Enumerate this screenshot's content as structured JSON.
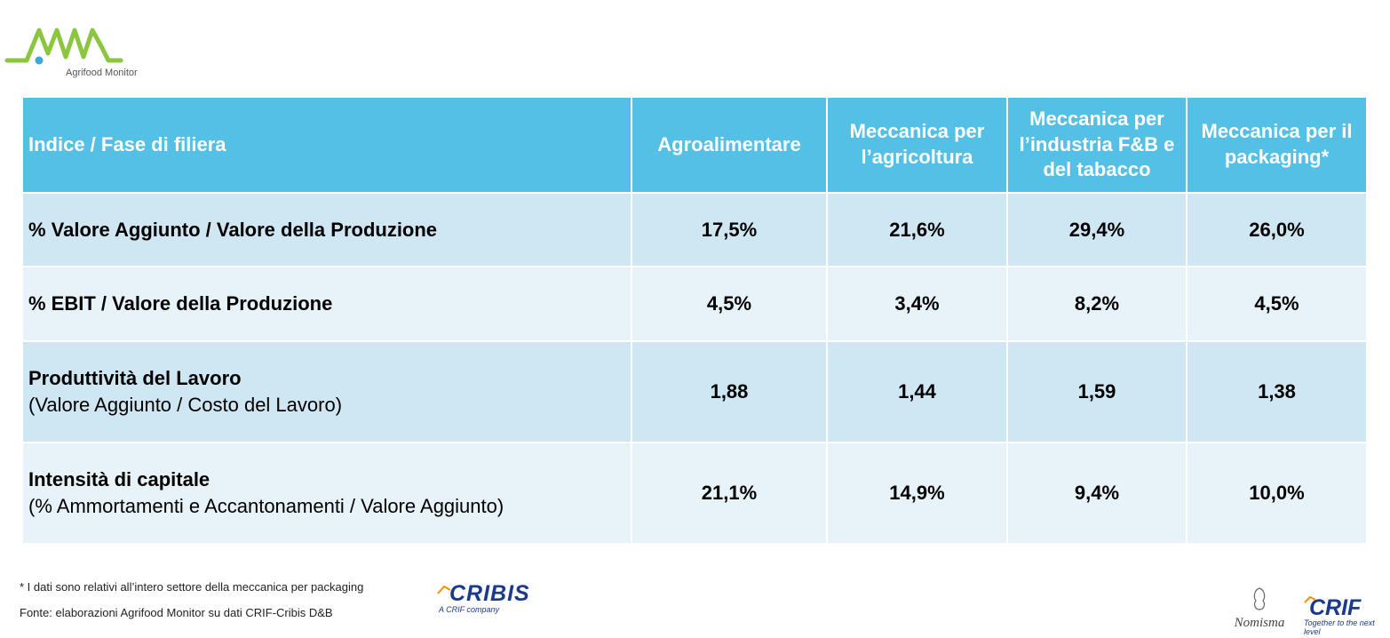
{
  "brand": {
    "name": "Agrifood Monitor",
    "logo_icon": "pulse-wave-logo",
    "colors": {
      "logo_green": "#8cc63f",
      "logo_blue": "#3fa9d6",
      "header_blue": "#55c0e6",
      "row_dark": "#cfe6f3",
      "row_light": "#e7f2f9"
    }
  },
  "table": {
    "headers": [
      "Indice / Fase di filiera",
      "Agroalimentare",
      "Meccanica per l’agricoltura",
      "Meccanica per l’industria F&B e del tabacco",
      "Meccanica per il packaging*"
    ],
    "rows": [
      {
        "label": "% Valore Aggiunto / Valore della Produzione",
        "sublabel": "",
        "values": [
          "17,5%",
          "21,6%",
          "29,4%",
          "26,0%"
        ]
      },
      {
        "label": "% EBIT / Valore della Produzione",
        "sublabel": "",
        "values": [
          "4,5%",
          "3,4%",
          "8,2%",
          "4,5%"
        ]
      },
      {
        "label": "Produttività del Lavoro",
        "sublabel": "(Valore Aggiunto / Costo del Lavoro)",
        "values": [
          "1,88",
          "1,44",
          "1,59",
          "1,38"
        ]
      },
      {
        "label": "Intensità di capitale",
        "sublabel": "(% Ammortamenti e Accantonamenti / Valore Aggiunto)",
        "values": [
          "21,1%",
          "14,9%",
          "9,4%",
          "10,0%"
        ]
      }
    ]
  },
  "footer": {
    "note": "* I dati sono relativi all’intero settore della meccanica per packaging",
    "source": "Fonte: elaborazioni Agrifood Monitor su dati CRIF-Cribis D&B"
  },
  "partners": {
    "cribis_name": "CRIBIS",
    "cribis_tagline": "A CRIF company",
    "nomisma_name": "Nomisma",
    "crif_name": "CRIF",
    "crif_tagline": "Together to the next level"
  }
}
